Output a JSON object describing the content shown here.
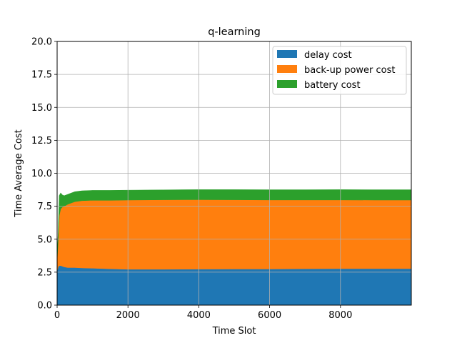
{
  "chart_data": {
    "type": "area",
    "stacked": true,
    "title": "q-learning",
    "xlabel": "Time Slot",
    "ylabel": "Time Average Cost",
    "xlim": [
      0,
      10000
    ],
    "ylim": [
      0,
      20
    ],
    "xticks": [
      0,
      2000,
      4000,
      6000,
      8000
    ],
    "yticks": [
      0.0,
      2.5,
      5.0,
      7.5,
      10.0,
      12.5,
      15.0,
      17.5,
      20.0
    ],
    "xtick_labels": [
      "0",
      "2000",
      "4000",
      "6000",
      "8000"
    ],
    "ytick_labels": [
      "0.0",
      "2.5",
      "5.0",
      "7.5",
      "10.0",
      "12.5",
      "15.0",
      "17.5",
      "20.0"
    ],
    "grid": true,
    "legend_position": "top-right",
    "x": [
      0,
      30,
      60,
      100,
      150,
      200,
      300,
      400,
      500,
      700,
      1000,
      1500,
      2000,
      3000,
      4000,
      5000,
      6000,
      7000,
      8000,
      9000,
      10000
    ],
    "series": [
      {
        "name": "delay cost",
        "color": "#1f77b4",
        "values": [
          2.6,
          2.9,
          3.0,
          3.0,
          2.95,
          2.9,
          2.85,
          2.85,
          2.85,
          2.82,
          2.8,
          2.75,
          2.72,
          2.72,
          2.73,
          2.74,
          2.74,
          2.76,
          2.77,
          2.77,
          2.77
        ]
      },
      {
        "name": "back-up power cost",
        "color": "#ff7f0e",
        "values": [
          0.8,
          2.0,
          3.8,
          4.3,
          4.5,
          4.6,
          4.8,
          4.9,
          5.0,
          5.1,
          5.15,
          5.2,
          5.25,
          5.27,
          5.27,
          5.25,
          5.24,
          5.22,
          5.21,
          5.2,
          5.2
        ]
      },
      {
        "name": "battery cost",
        "color": "#2ca02c",
        "values": [
          0.2,
          0.6,
          1.5,
          1.2,
          0.9,
          0.8,
          0.75,
          0.75,
          0.75,
          0.75,
          0.75,
          0.75,
          0.75,
          0.75,
          0.76,
          0.77,
          0.77,
          0.77,
          0.78,
          0.78,
          0.78
        ]
      }
    ]
  }
}
